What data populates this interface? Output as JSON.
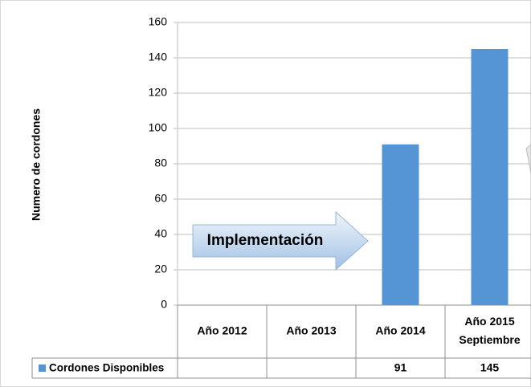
{
  "chart_data": {
    "type": "bar",
    "y_label": "Numero de cordones",
    "annotation": "Implementación",
    "categories": [
      "Año 2012",
      "Año 2013",
      "Año 2014",
      "Año 2015 Septiembre"
    ],
    "series": [
      {
        "name": "Cordones Disponibles",
        "color": "#5595d5",
        "values": [
          null,
          null,
          91,
          145
        ]
      }
    ],
    "ylim": [
      0,
      160
    ],
    "yticks": [
      0,
      20,
      40,
      60,
      80,
      100,
      120,
      140,
      160
    ],
    "grid": true,
    "legend": "table"
  }
}
